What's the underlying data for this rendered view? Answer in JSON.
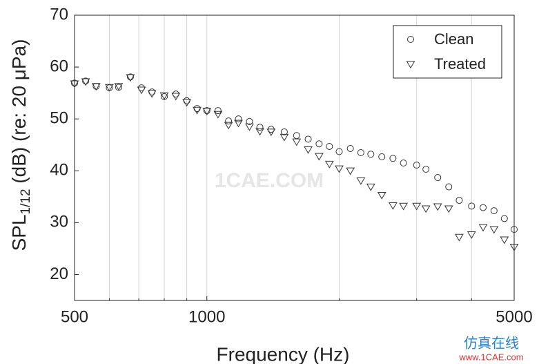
{
  "chart_data": {
    "type": "scatter",
    "xlabel": "Frequency (Hz)",
    "ylabel": {
      "main": "SPL",
      "sub": "1/12",
      "rest": " (dB) (re: 20 μPa)"
    },
    "xscale": "log",
    "xlim": [
      500,
      5000
    ],
    "xticks": [
      500,
      1000,
      5000
    ],
    "xminor": [
      600,
      700,
      800,
      900,
      2000,
      3000,
      4000
    ],
    "ylim": [
      15,
      70
    ],
    "yticks": [
      20,
      30,
      40,
      50,
      60,
      70
    ],
    "grid": true,
    "legend": "upper right",
    "watermark": "1CAE.COM",
    "footer": [
      "仿真在线",
      "www.1CAE.com"
    ],
    "x": [
      500,
      530,
      560,
      600,
      630,
      670,
      710,
      750,
      800,
      850,
      900,
      950,
      1000,
      1060,
      1120,
      1180,
      1250,
      1320,
      1400,
      1500,
      1600,
      1700,
      1800,
      1900,
      2000,
      2120,
      2240,
      2360,
      2500,
      2650,
      2800,
      3000,
      3150,
      3350,
      3550,
      3750,
      4000,
      4250,
      4500,
      4750,
      5000
    ],
    "series": [
      {
        "name": "Clean",
        "marker": "circle",
        "color": "#333333",
        "values": [
          56.9,
          57.3,
          56.3,
          56.0,
          56.1,
          58.1,
          56.0,
          55.2,
          54.3,
          54.8,
          53.5,
          52.0,
          51.6,
          51.6,
          49.6,
          50.0,
          49.5,
          48.4,
          48.0,
          47.5,
          46.8,
          46.1,
          45.2,
          44.7,
          43.7,
          44.3,
          43.5,
          43.2,
          42.7,
          42.4,
          41.5,
          41.1,
          40.3,
          38.7,
          36.9,
          34.3,
          33.2,
          32.9,
          32.3,
          30.8,
          28.7
        ]
      },
      {
        "name": "Treated",
        "marker": "triangle-down",
        "color": "#333333",
        "values": [
          56.8,
          57.2,
          56.3,
          56.1,
          56.3,
          58.0,
          55.6,
          54.9,
          54.5,
          54.4,
          53.2,
          51.7,
          51.5,
          50.9,
          48.8,
          49.2,
          48.5,
          47.6,
          47.5,
          46.5,
          45.6,
          44.1,
          42.8,
          41.3,
          40.4,
          40.0,
          38.1,
          36.9,
          35.3,
          33.3,
          33.2,
          33.2,
          32.7,
          33.1,
          32.7,
          27.2,
          27.7,
          29.1,
          28.7,
          26.7,
          25.3
        ]
      }
    ]
  }
}
